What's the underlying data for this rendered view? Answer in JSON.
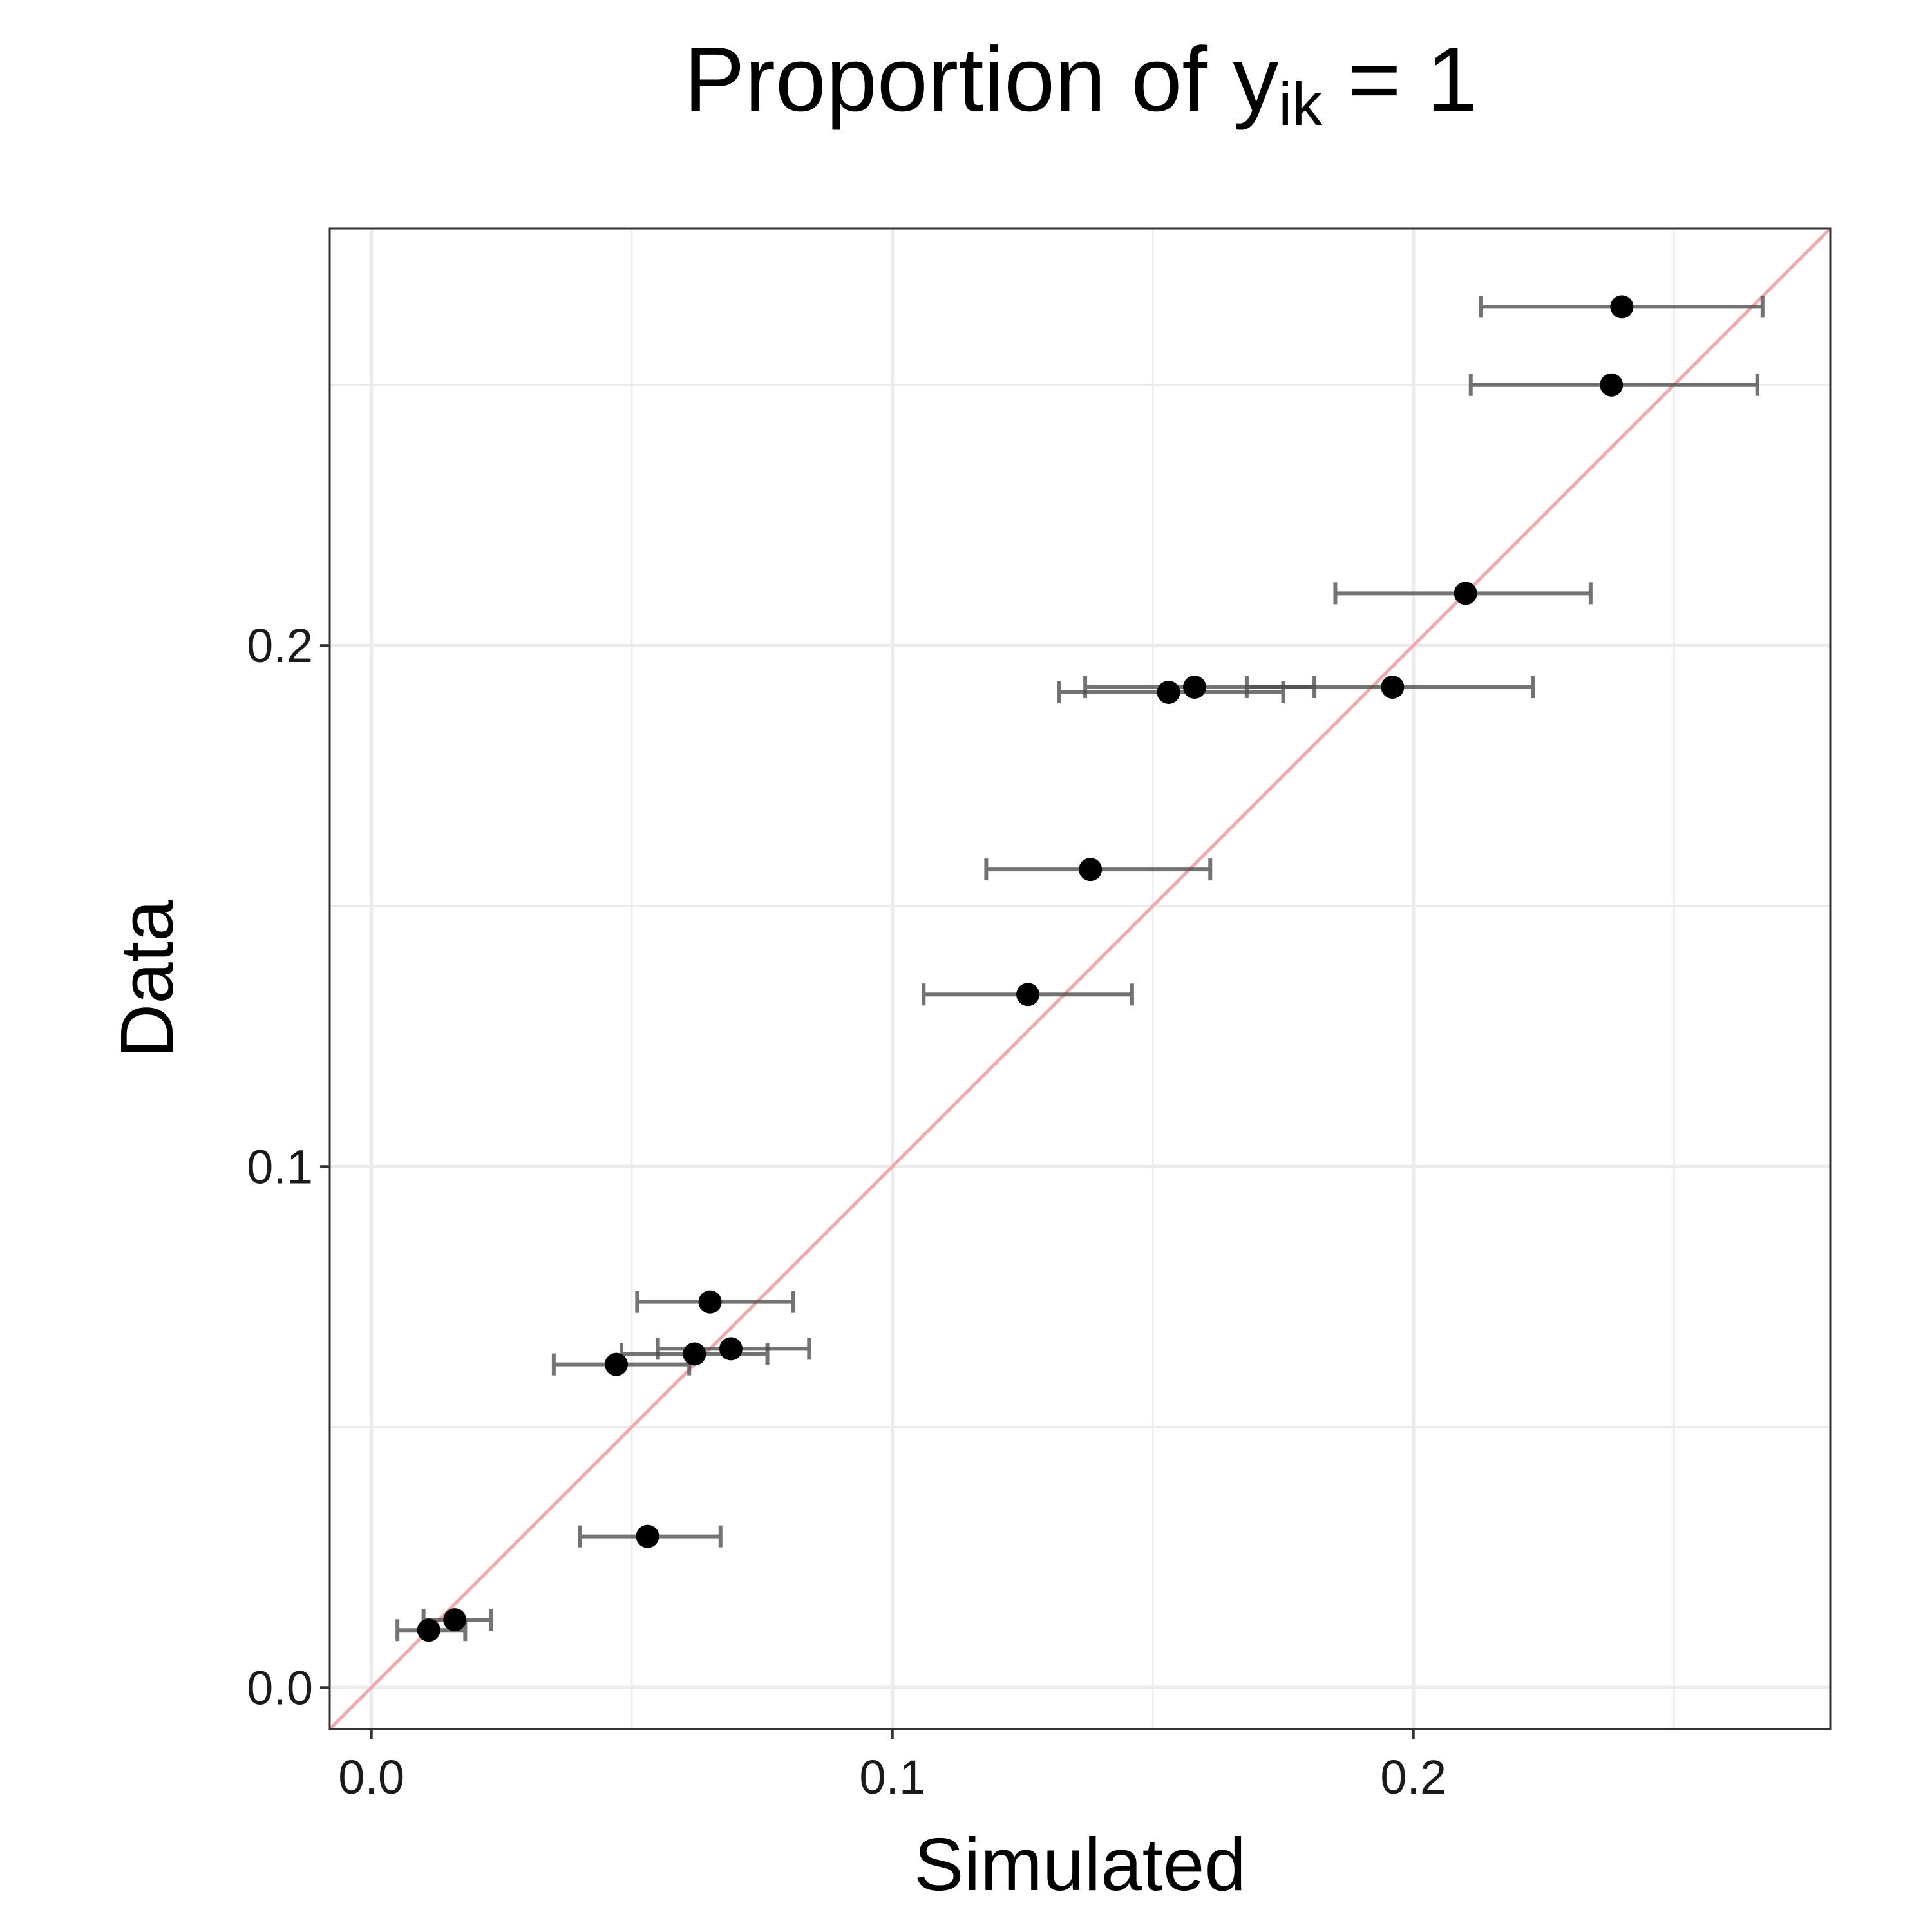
{
  "chart_data": {
    "type": "scatter",
    "title": {
      "prefix": "Proportion of y",
      "subscript": "ik",
      "suffix": " = 1"
    },
    "xlabel": "Simulated",
    "ylabel": "Data",
    "xlim": [
      -0.008,
      0.28
    ],
    "ylim": [
      -0.008,
      0.28
    ],
    "x_ticks": [
      0.0,
      0.1,
      0.2
    ],
    "x_tick_labels": [
      "0.0",
      "0.1",
      "0.2"
    ],
    "y_ticks": [
      0.0,
      0.1,
      0.2
    ],
    "y_tick_labels": [
      "0.0",
      "0.1",
      "0.2"
    ],
    "minor_grid": [
      0.05,
      0.15,
      0.25
    ],
    "grid": true,
    "legend": "none",
    "reference_line": {
      "type": "identity",
      "color": "#f4a9a8"
    },
    "colors": {
      "point": "#000000",
      "errorbar": "#7a7a7a",
      "grid": "#ebebeb",
      "panel_border": "#333333"
    },
    "points": [
      {
        "x": 0.24,
        "y": 0.265,
        "xmin": 0.213,
        "xmax": 0.267
      },
      {
        "x": 0.238,
        "y": 0.25,
        "xmin": 0.211,
        "xmax": 0.266
      },
      {
        "x": 0.21,
        "y": 0.21,
        "xmin": 0.185,
        "xmax": 0.234
      },
      {
        "x": 0.196,
        "y": 0.192,
        "xmin": 0.168,
        "xmax": 0.223
      },
      {
        "x": 0.158,
        "y": 0.192,
        "xmin": 0.137,
        "xmax": 0.181
      },
      {
        "x": 0.153,
        "y": 0.191,
        "xmin": 0.132,
        "xmax": 0.175
      },
      {
        "x": 0.138,
        "y": 0.157,
        "xmin": 0.118,
        "xmax": 0.161
      },
      {
        "x": 0.126,
        "y": 0.133,
        "xmin": 0.106,
        "xmax": 0.146
      },
      {
        "x": 0.065,
        "y": 0.074,
        "xmin": 0.051,
        "xmax": 0.081
      },
      {
        "x": 0.069,
        "y": 0.065,
        "xmin": 0.055,
        "xmax": 0.084
      },
      {
        "x": 0.062,
        "y": 0.064,
        "xmin": 0.048,
        "xmax": 0.076
      },
      {
        "x": 0.047,
        "y": 0.062,
        "xmin": 0.035,
        "xmax": 0.061
      },
      {
        "x": 0.053,
        "y": 0.029,
        "xmin": 0.04,
        "xmax": 0.067
      },
      {
        "x": 0.016,
        "y": 0.013,
        "xmin": 0.01,
        "xmax": 0.023
      },
      {
        "x": 0.011,
        "y": 0.011,
        "xmin": 0.005,
        "xmax": 0.018
      }
    ]
  }
}
